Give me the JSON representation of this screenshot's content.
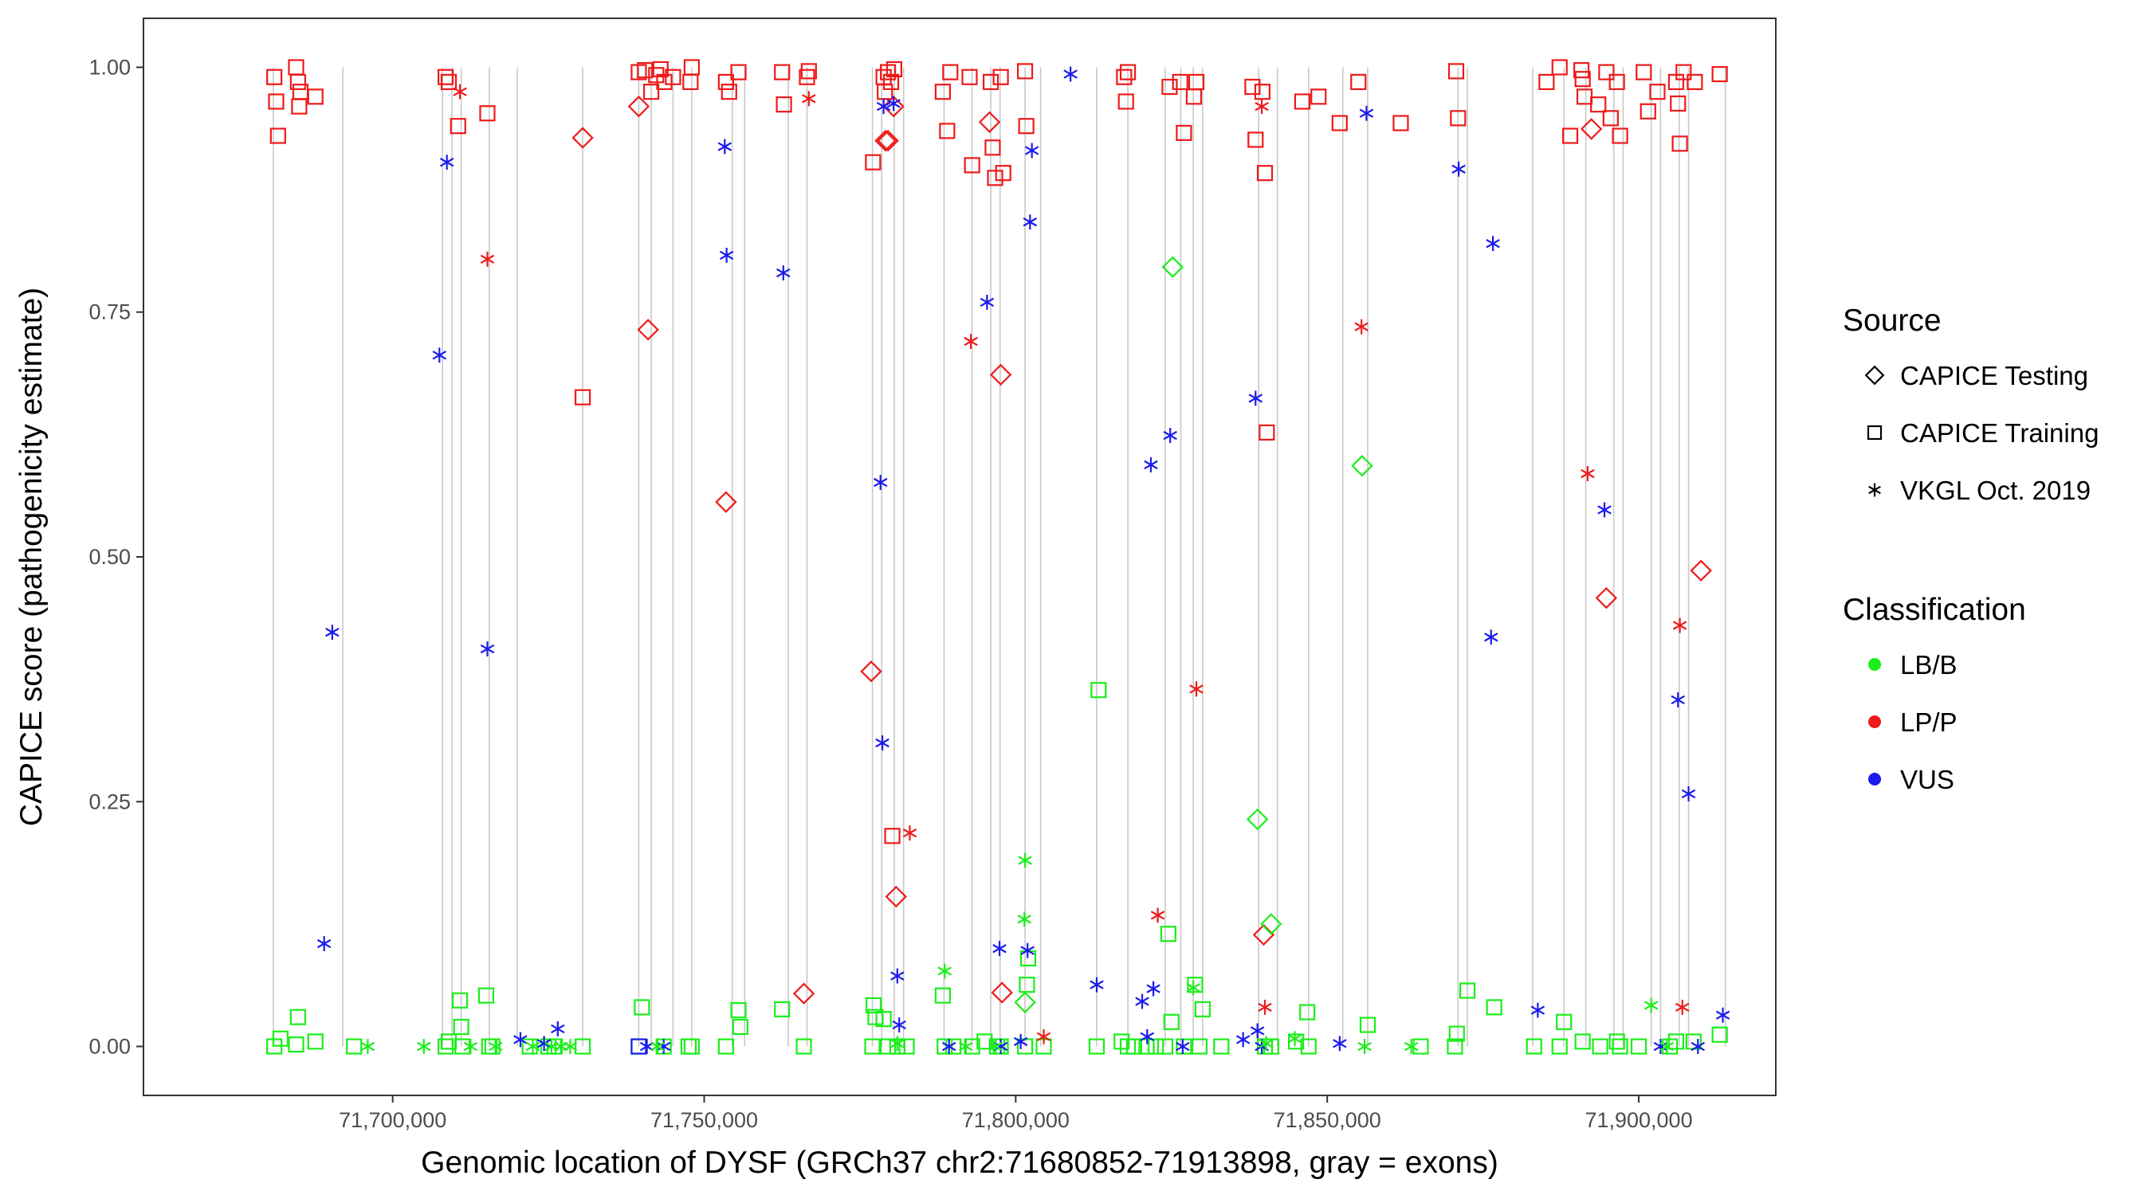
{
  "chart_data": {
    "type": "scatter",
    "title": "",
    "xlabel": "Genomic location of DYSF (GRCh37 chr2:71680852-71913898, gray = exons)",
    "ylabel": "CAPICE score (pathogenicity estimate)",
    "xlim": [
      71660000,
      71922000
    ],
    "ylim": [
      -0.05,
      1.05
    ],
    "x_ticks": [
      71700000,
      71750000,
      71800000,
      71850000,
      71900000
    ],
    "x_tick_labels": [
      "71,700,000",
      "71,750,000",
      "71,800,000",
      "71,850,000",
      "71,900,000"
    ],
    "y_ticks": [
      0,
      0.25,
      0.5,
      0.75,
      1
    ],
    "y_tick_labels": [
      "0.00",
      "0.25",
      "0.50",
      "0.75",
      "1.00"
    ],
    "grid": false,
    "exons": [
      71680852,
      71692000,
      71708000,
      71709500,
      71711000,
      71715500,
      71720000,
      71730500,
      71739500,
      71741500,
      71745000,
      71748000,
      71754500,
      71756500,
      71763500,
      71766500,
      71777000,
      71778500,
      71780500,
      71782000,
      71788500,
      71793000,
      71796000,
      71797500,
      71801500,
      71804000,
      71813000,
      71818000,
      71824000,
      71826500,
      71828500,
      71830000,
      71839000,
      71842000,
      71847000,
      71852500,
      71856500,
      71871000,
      71872500,
      71883000,
      71888000,
      71891500,
      71896000,
      71897500,
      71902000,
      71903500,
      71906500,
      71908000,
      71913898
    ],
    "legend": {
      "placement": "right",
      "source_title": "Source",
      "classification_title": "Classification",
      "sources": [
        {
          "key": "testing",
          "label": "CAPICE Testing",
          "shape": "diamond"
        },
        {
          "key": "training",
          "label": "CAPICE Training",
          "shape": "square"
        },
        {
          "key": "vkgl",
          "label": "VKGL Oct. 2019",
          "shape": "asterisk"
        }
      ],
      "classes": [
        {
          "key": "lbb",
          "label": "LB/B",
          "color": "#1aee1a"
        },
        {
          "key": "lpp",
          "label": "LP/P",
          "color": "#ee1a1a"
        },
        {
          "key": "vus",
          "label": "VUS",
          "color": "#1a1aee"
        }
      ]
    },
    "series": [
      {
        "source": "training",
        "class": "lpp",
        "x": [
          71681000,
          71681300,
          71681600,
          71684500,
          71684800,
          71685000,
          71685200,
          71687600,
          71708500,
          71709000,
          71710500,
          71715200,
          71730500,
          71739500,
          71740500,
          71741500,
          71742300,
          71743000,
          71743600,
          71745000,
          71747800,
          71748000,
          71753500,
          71754000,
          71755500,
          71762500,
          71762800,
          71766500,
          71766800,
          71777100,
          71778800,
          71779000,
          71779500,
          71780000,
          71780500,
          71780200,
          71788300,
          71789000,
          71789500,
          71792600,
          71793000,
          71796000,
          71796300,
          71796700,
          71797600,
          71798000,
          71801500,
          71801700,
          71817400,
          71817700,
          71818000,
          71824700,
          71826400,
          71827000,
          71828600,
          71829000,
          71838000,
          71838500,
          71839600,
          71840000,
          71840300,
          71846000,
          71848600,
          71852000,
          71855000,
          71861800,
          71870700,
          71871000,
          71885200,
          71887300,
          71889000,
          71890800,
          71891000,
          71891300,
          71893500,
          71894800,
          71895500,
          71896500,
          71897000,
          71900800,
          71901500,
          71903000,
          71906000,
          71906300,
          71906600,
          71907200,
          71909000,
          71913000
        ],
        "y": [
          0.99,
          0.965,
          0.93,
          1.0,
          0.985,
          0.96,
          0.975,
          0.97,
          0.99,
          0.985,
          0.94,
          0.953,
          0.663,
          0.995,
          0.997,
          0.975,
          0.992,
          0.998,
          0.985,
          0.99,
          0.985,
          1.0,
          0.985,
          0.975,
          0.995,
          0.995,
          0.962,
          0.99,
          0.996,
          0.903,
          0.99,
          0.975,
          0.995,
          0.985,
          0.998,
          0.215,
          0.975,
          0.935,
          0.995,
          0.99,
          0.9,
          0.985,
          0.918,
          0.887,
          0.99,
          0.892,
          0.996,
          0.94,
          0.99,
          0.965,
          0.995,
          0.98,
          0.985,
          0.933,
          0.97,
          0.985,
          0.98,
          0.926,
          0.975,
          0.892,
          0.627,
          0.965,
          0.97,
          0.943,
          0.985,
          0.943,
          0.996,
          0.948,
          0.985,
          1.0,
          0.93,
          0.997,
          0.988,
          0.97,
          0.962,
          0.995,
          0.948,
          0.985,
          0.93,
          0.995,
          0.955,
          0.975,
          0.985,
          0.963,
          0.922,
          0.995,
          0.985,
          0.993
        ]
      },
      {
        "source": "training",
        "class": "lbb",
        "x": [
          71681000,
          71682000,
          71684500,
          71684800,
          71687600,
          71693800,
          71708500,
          71709000,
          71710800,
          71711000,
          71711200,
          71715000,
          71715500,
          71716000,
          71722000,
          71725000,
          71726000,
          71730500,
          71739500,
          71740000,
          71743500,
          71747500,
          71748000,
          71753500,
          71755500,
          71755800,
          71762500,
          71766000,
          71777000,
          71777200,
          71777500,
          71778800,
          71779500,
          71781000,
          71782500,
          71788300,
          71788600,
          71790000,
          71793000,
          71795000,
          71797000,
          71797600,
          71801500,
          71801800,
          71802000,
          71804500,
          71813000,
          71813300,
          71817000,
          71818000,
          71819000,
          71821000,
          71822500,
          71824000,
          71824500,
          71825000,
          71827000,
          71828800,
          71829500,
          71830000,
          71833000,
          71840000,
          71841000,
          71845000,
          71846800,
          71847000,
          71856500,
          71865000,
          71870500,
          71870800,
          71872500,
          71876800,
          71883200,
          71887300,
          71888000,
          71891000,
          71893800,
          71896500,
          71897000,
          71900000,
          71905000,
          71906000,
          71908800,
          71913000
        ],
        "y": [
          0.0,
          0.008,
          0.002,
          0.03,
          0.005,
          0.0,
          0.0,
          0.005,
          0.047,
          0.02,
          0.0,
          0.052,
          0.0,
          0.0,
          0.0,
          0.0,
          0.0,
          0.0,
          0.0,
          0.04,
          0.0,
          0.0,
          0.0,
          0.0,
          0.037,
          0.02,
          0.038,
          0.0,
          0.0,
          0.042,
          0.03,
          0.028,
          0.0,
          0.0,
          0.0,
          0.052,
          0.0,
          0.0,
          0.0,
          0.005,
          0.0,
          0.0,
          0.0,
          0.063,
          0.09,
          0.0,
          0.0,
          0.364,
          0.005,
          0.0,
          0.0,
          0.0,
          0.0,
          0.0,
          0.115,
          0.025,
          0.0,
          0.063,
          0.0,
          0.038,
          0.0,
          0.0,
          0.0,
          0.005,
          0.035,
          0.0,
          0.022,
          0.0,
          0.0,
          0.013,
          0.057,
          0.04,
          0.0,
          0.0,
          0.025,
          0.005,
          0.0,
          0.005,
          0.0,
          0.0,
          0.0,
          0.005,
          0.005,
          0.012
        ]
      },
      {
        "source": "training",
        "class": "vus",
        "x": [
          71739500
        ],
        "y": [
          0.0
        ]
      },
      {
        "source": "testing",
        "class": "lpp",
        "x": [
          71730500,
          71739500,
          71741000,
          71753500,
          71766000,
          71776800,
          71779100,
          71779500,
          71780400,
          71780800,
          71795800,
          71797600,
          71797800,
          71839800,
          71892400,
          71894800,
          71910000
        ],
        "y": [
          0.928,
          0.96,
          0.732,
          0.556,
          0.054,
          0.383,
          0.925,
          0.925,
          0.96,
          0.153,
          0.944,
          0.686,
          0.055,
          0.114,
          0.937,
          0.458,
          0.486
        ]
      },
      {
        "source": "testing",
        "class": "lbb",
        "x": [
          71801500,
          71825200,
          71838800,
          71841000,
          71855600
        ],
        "y": [
          0.045,
          0.796,
          0.232,
          0.125,
          0.593
        ]
      },
      {
        "source": "vkgl",
        "class": "lpp",
        "x": [
          71710800,
          71715200,
          71766800,
          71783000,
          71792800,
          71804500,
          71822800,
          71829000,
          71839500,
          71840000,
          71855500,
          71891800,
          71906600,
          71907000
        ],
        "y": [
          0.975,
          0.804,
          0.968,
          0.218,
          0.72,
          0.01,
          0.134,
          0.365,
          0.96,
          0.04,
          0.735,
          0.585,
          0.43,
          0.04
        ]
      },
      {
        "source": "vkgl",
        "class": "vus",
        "x": [
          71689000,
          71690300,
          71707500,
          71708700,
          71715200,
          71720500,
          71724300,
          71726500,
          71740800,
          71743500,
          71753300,
          71753600,
          71762700,
          71778300,
          71778600,
          71778800,
          71780400,
          71781000,
          71781300,
          71789300,
          71795400,
          71797400,
          71797600,
          71800800,
          71801900,
          71802300,
          71802600,
          71808800,
          71813000,
          71820300,
          71821100,
          71821700,
          71822100,
          71824800,
          71826800,
          71836500,
          71838500,
          71838800,
          71839500,
          71852000,
          71856300,
          71871100,
          71876300,
          71876600,
          71883800,
          71894500,
          71903500,
          71906300,
          71908000,
          71909500,
          71913500
        ],
        "y": [
          0.105,
          0.423,
          0.706,
          0.903,
          0.406,
          0.007,
          0.003,
          0.018,
          0.0,
          0.0,
          0.919,
          0.808,
          0.79,
          0.576,
          0.31,
          0.96,
          0.963,
          0.072,
          0.022,
          0.0,
          0.76,
          0.1,
          0.0,
          0.005,
          0.098,
          0.842,
          0.915,
          0.993,
          0.063,
          0.046,
          0.01,
          0.594,
          0.059,
          0.624,
          0.0,
          0.007,
          0.662,
          0.016,
          0.0,
          0.003,
          0.953,
          0.896,
          0.418,
          0.82,
          0.037,
          0.548,
          0.0,
          0.354,
          0.258,
          0.0,
          0.032
        ]
      },
      {
        "source": "vkgl",
        "class": "lbb",
        "x": [
          71696000,
          71705000,
          71712500,
          71716500,
          71722500,
          71725500,
          71727000,
          71728500,
          71742500,
          71781000,
          71788600,
          71792000,
          71796800,
          71801500,
          71828500,
          71840200,
          71844800,
          71856000,
          71863500,
          71902000,
          71904500
        ],
        "y": [
          0.0,
          0.0,
          0.0,
          0.0,
          0.0,
          0.0,
          0.0,
          0.0,
          0.0,
          0.003,
          0.077,
          0.0,
          0.0,
          0.19,
          0.06,
          0.003,
          0.008,
          0.0,
          0.0,
          0.042,
          0.0
        ]
      },
      {
        "source": "vkgl",
        "class": "lbb",
        "x": [
          71801400
        ],
        "y": [
          0.13
        ]
      }
    ]
  }
}
